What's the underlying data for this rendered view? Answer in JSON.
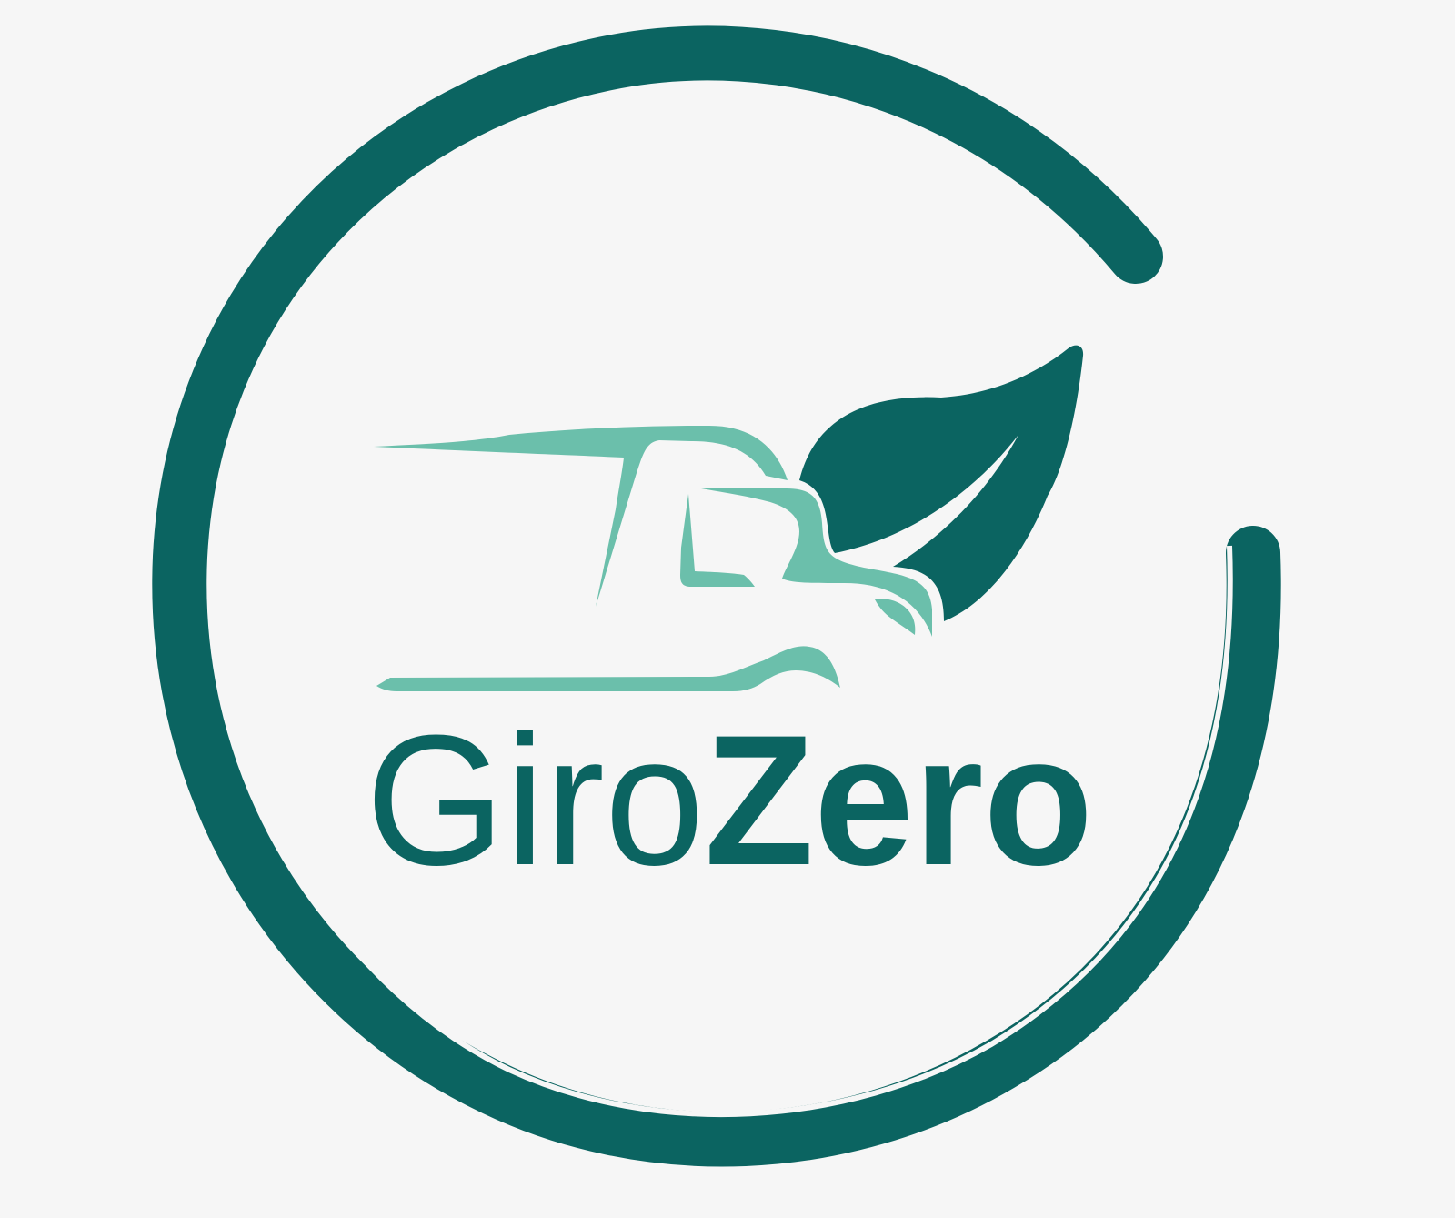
{
  "logo": {
    "wordmark_part1": "Giro",
    "wordmark_part2": "Zero",
    "colors": {
      "primary": "#0b6461",
      "accent": "#6bbfab",
      "background": "#f6f6f6"
    },
    "icons": [
      "ring-swoosh",
      "truck-outline",
      "leaf"
    ]
  }
}
